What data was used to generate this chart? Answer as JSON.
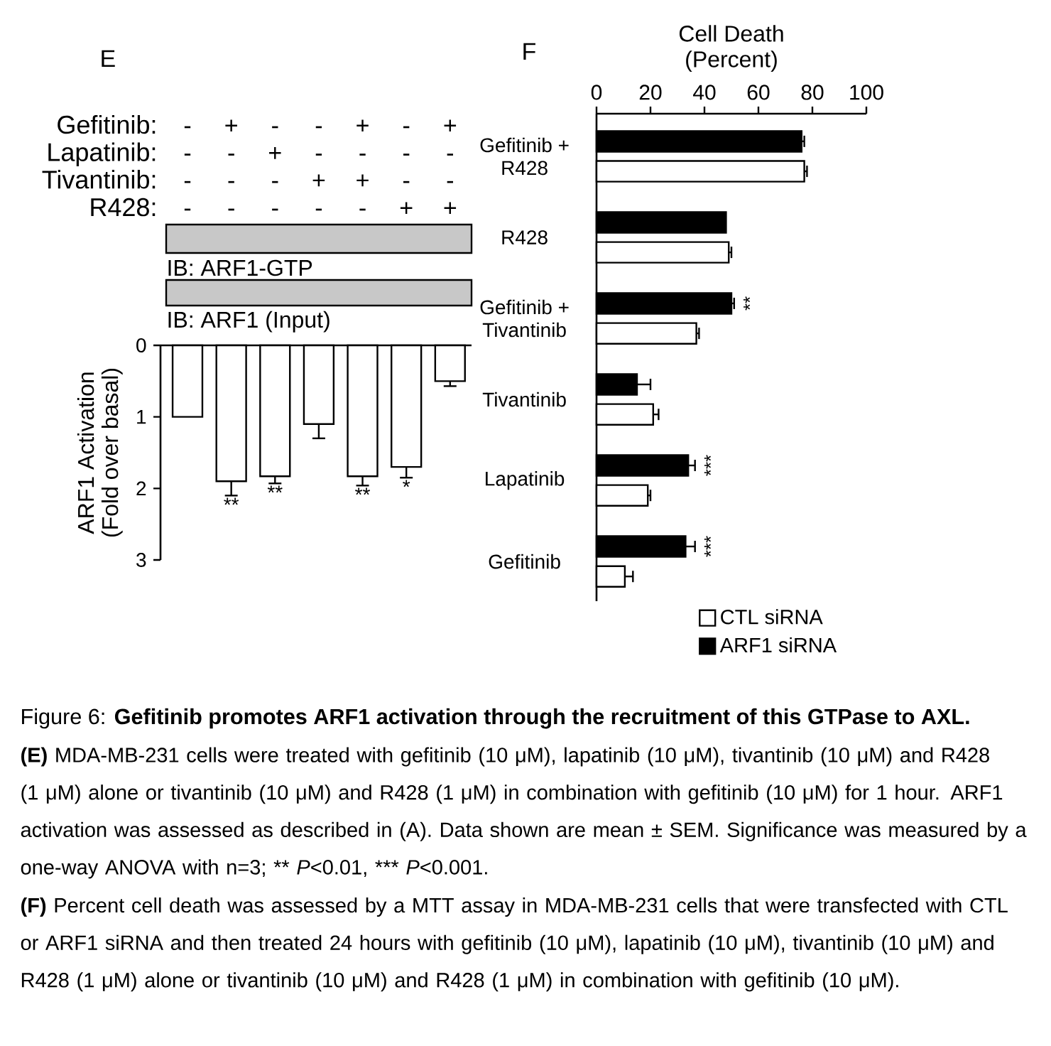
{
  "chart_data": [
    {
      "type": "bar",
      "title": "Figure 6: **Gefitinib promotes ARF1 activation through the recruitment of this GTPase to AXL.**",
      "ylabel": "ARF1 Activation (Fold over basal)",
      "categories": [
        null,
        null,
        null,
        null,
        null,
        null,
        null
      ],
      "values": [
        1.0,
        1.9,
        1.83,
        1.1,
        1.83,
        1.7,
        0.5
      ],
      "errors": [
        null,
        [
          1.9,
          2.1
        ],
        [
          1.83,
          1.93
        ],
        [
          1.1,
          1.3
        ],
        [
          1.83,
          1.96
        ],
        [
          1.7,
          1.85
        ],
        [
          0.5,
          0.57
        ]
      ],
      "value_labels": [
        null,
        "**",
        "**",
        null,
        "**",
        "*",
        null
      ],
      "color": "#ffffff",
      "ylim": [
        3,
        0
      ],
      "yticks": [
        0,
        1,
        2,
        3
      ],
      "tick_labels": "y",
      "annotations": [
        "E",
        "Gefitinib:",
        "Lapatinib:",
        "Tivantinib:",
        "R428:",
        "-",
        "+",
        "-",
        "-",
        "+",
        "-",
        "+",
        "-",
        "-",
        "+",
        "-",
        "-",
        "-",
        "-",
        "-",
        "-",
        "-",
        "+",
        "+",
        "-",
        "-",
        "-",
        "-",
        "-",
        "-",
        "-",
        "+",
        "+",
        "IB: ARF1-GTP",
        "IB: ARF1 (Input)",
        "**(E)** MDA-MB-231 cells were treated with gefitinib (10 μM), lapatinib (10 μM), tivantinib (10 μM) and R428 (1 μM) alone or tivantinib (10 μM) and R428 (1 μM) in combination with gefitinib (10 μM) for 1 hour. ARF1 activation was assessed as described in (A). Data shown are mean ± SEM. Significance was measured by a one-way ANOVA with n=3; ** *P*<0.01, *** *P*<0.001."
      ]
    },
    {
      "type": "bar",
      "orientation": "horizontal",
      "xlabel": "Cell Death (Percent)",
      "categories": [
        "Gefitinib + R428",
        "R428",
        "Gefitinib + Tivantinib",
        "Tivantinib",
        "Lapatinib",
        "Gefitinib"
      ],
      "series": [
        {
          "name": "CTL siRNA",
          "color": "#ffffff",
          "values": [
            77,
            49,
            37,
            21,
            19,
            10.5
          ],
          "errors": [
            [
              77,
              78
            ],
            [
              49,
              50
            ],
            [
              37,
              38
            ],
            [
              21,
              23
            ],
            [
              19,
              20
            ],
            [
              10.5,
              13.5
            ]
          ]
        },
        {
          "name": "ARF1 siRNA",
          "color": "#000000",
          "values": [
            76,
            48,
            50,
            15,
            34,
            33
          ],
          "errors": [
            [
              76,
              77
            ],
            null,
            [
              50,
              51
            ],
            [
              15,
              20
            ],
            [
              34,
              36.5
            ],
            [
              33,
              36.5
            ]
          ],
          "value_labels": [
            null,
            null,
            "**",
            null,
            "***",
            "***"
          ]
        }
      ],
      "xlim": [
        0,
        100
      ],
      "xticks": [
        0,
        20,
        40,
        60,
        80,
        100
      ],
      "legend": "bottom right",
      "annotations": [
        "F",
        "**(F)** Percent cell death was assessed by a MTT assay in MDA-MB-231 cells that were transfected with CTL or ARF1 siRNA and then treated 24 hours with gefitinib (10 μM), lapatinib (10 μM), tivantinib (10 μM) and R428 (1 μM) alone or tivantinib (10 μM) and R428 (1 μM) in combination with gefitinib (10 μM)."
      ]
    }
  ]
}
